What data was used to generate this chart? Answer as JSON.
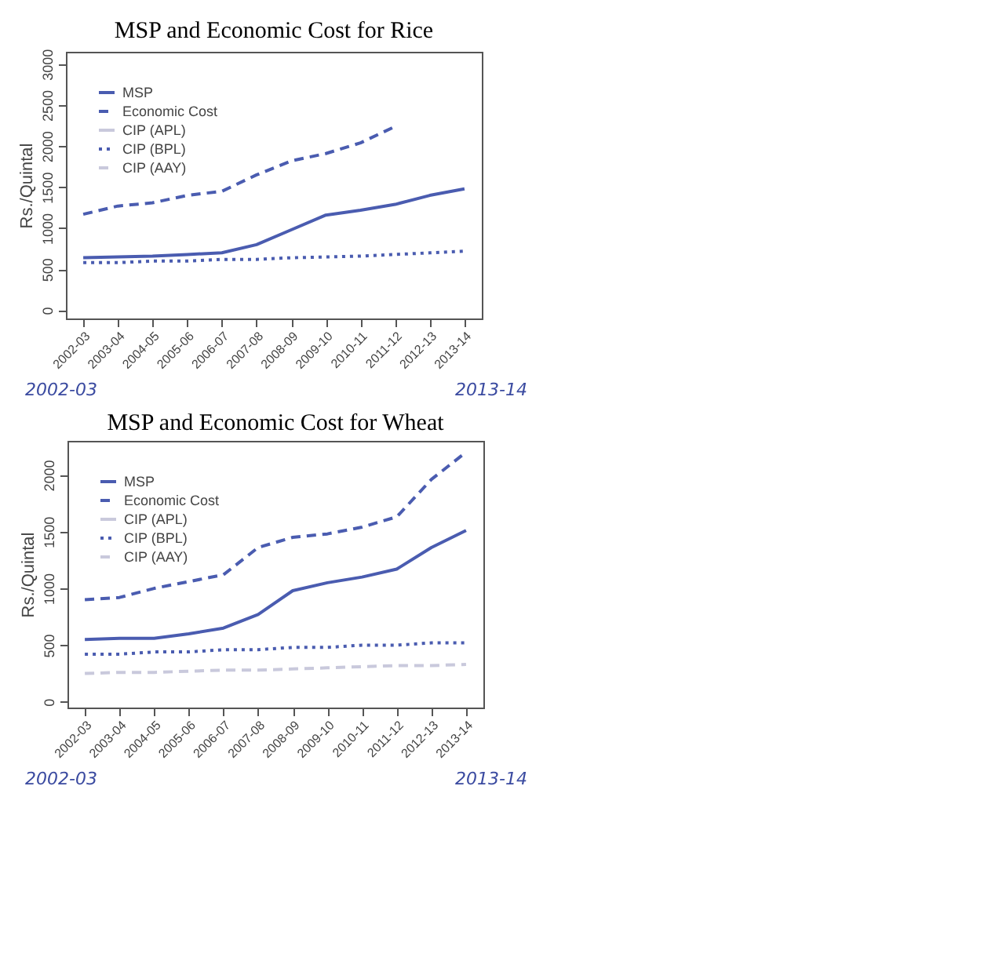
{
  "chart_data": [
    {
      "type": "line",
      "title": "MSP and Economic Cost for Rice",
      "ylabel": "Rs./Quintal",
      "categories": [
        "2002-03",
        "2003-04",
        "2004-05",
        "2005-06",
        "2006-07",
        "2007-08",
        "2008-09",
        "2009-10",
        "2010-11",
        "2011-12",
        "2012-13",
        "2013-14"
      ],
      "ylim": [
        -100,
        3150
      ],
      "yticks": [
        0,
        500,
        1000,
        1500,
        2000,
        2500,
        3000
      ],
      "legend": "top left",
      "annotations": [
        "2002-03",
        "2013-14"
      ],
      "series": [
        {
          "name": "MSP",
          "color": "#4a5cb0",
          "line_style": "solid",
          "values": [
            640,
            650,
            660,
            680,
            700,
            800,
            980,
            1160,
            1220,
            1290,
            1400,
            1480
          ]
        },
        {
          "name": "Economic Cost",
          "color": "#4a5cb0",
          "line_style": "dashed",
          "values": [
            1170,
            1270,
            1310,
            1400,
            1450,
            1650,
            1820,
            1910,
            2040,
            2240,
            null,
            null
          ]
        },
        {
          "name": "CIP (APL)",
          "color": "#c9c9dc",
          "line_style": "solid",
          "values": [
            null,
            null,
            null,
            null,
            null,
            null,
            null,
            null,
            null,
            null,
            null,
            null
          ]
        },
        {
          "name": "CIP (BPL)",
          "color": "#4a5cb0",
          "line_style": "dotted",
          "values": [
            580,
            580,
            600,
            600,
            620,
            620,
            640,
            650,
            660,
            680,
            700,
            720
          ]
        },
        {
          "name": "CIP (AAY)",
          "color": "#c9c9dc",
          "line_style": "dashed",
          "values": [
            null,
            null,
            null,
            null,
            null,
            null,
            null,
            null,
            null,
            null,
            null,
            null
          ]
        }
      ]
    },
    {
      "type": "line",
      "title": "MSP and Economic Cost for Wheat",
      "ylabel": "Rs./Quintal",
      "categories": [
        "2002-03",
        "2003-04",
        "2004-05",
        "2005-06",
        "2006-07",
        "2007-08",
        "2008-09",
        "2009-10",
        "2010-11",
        "2011-12",
        "2012-13",
        "2013-14"
      ],
      "ylim": [
        -50,
        2300
      ],
      "yticks": [
        0,
        500,
        1000,
        1500,
        2000
      ],
      "legend": "top left",
      "annotations": [
        "2002-03",
        "2013-14"
      ],
      "series": [
        {
          "name": "MSP",
          "color": "#4a5cb0",
          "line_style": "solid",
          "values": [
            550,
            560,
            560,
            600,
            650,
            770,
            980,
            1050,
            1100,
            1170,
            1360,
            1510
          ]
        },
        {
          "name": "Economic Cost",
          "color": "#4a5cb0",
          "line_style": "dashed",
          "values": [
            900,
            920,
            1000,
            1060,
            1120,
            1360,
            1450,
            1480,
            1540,
            1630,
            1960,
            2200
          ]
        },
        {
          "name": "CIP (APL)",
          "color": "#c9c9dc",
          "line_style": "solid",
          "values": [
            null,
            null,
            null,
            null,
            null,
            null,
            null,
            null,
            null,
            null,
            null,
            null
          ]
        },
        {
          "name": "CIP (BPL)",
          "color": "#4a5cb0",
          "line_style": "dotted",
          "values": [
            420,
            420,
            440,
            440,
            460,
            460,
            480,
            480,
            500,
            500,
            520,
            520
          ]
        },
        {
          "name": "CIP (AAY)",
          "color": "#c9c9dc",
          "line_style": "dashed",
          "values": [
            250,
            260,
            260,
            270,
            280,
            280,
            290,
            300,
            310,
            320,
            320,
            330
          ]
        }
      ]
    }
  ]
}
